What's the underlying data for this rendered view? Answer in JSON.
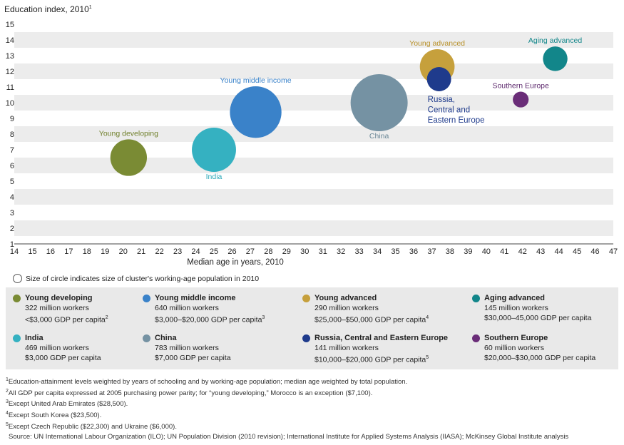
{
  "chart_data": {
    "type": "scatter",
    "ylabel": "Education index, 2010",
    "ylabel_sup": "1",
    "xlabel": "Median age in years, 2010",
    "xlim": [
      14,
      47
    ],
    "ylim": [
      1,
      15
    ],
    "x_ticks": [
      "14",
      "15",
      "16",
      "17",
      "18",
      "19",
      "20",
      "21",
      "22",
      "23",
      "24",
      "25",
      "26",
      "27",
      "28",
      "29",
      "30",
      "31",
      "32",
      "33",
      "34",
      "35",
      "36",
      "37",
      "38",
      "39",
      "40",
      "41",
      "42",
      "43",
      "44",
      "45",
      "46",
      "47"
    ],
    "y_ticks": [
      "1",
      "2",
      "3",
      "4",
      "5",
      "6",
      "7",
      "8",
      "9",
      "10",
      "11",
      "12",
      "13",
      "14",
      "15"
    ],
    "grid": "horizontal bands",
    "series": [
      {
        "name": "Young developing",
        "x": 20.3,
        "y": 6.5,
        "population_million": 322,
        "color": "#7a8b34",
        "label_lines": [
          "Young developing"
        ],
        "label_pos": "above",
        "label_color": "#6f7f2a"
      },
      {
        "name": "India",
        "x": 25.0,
        "y": 7.0,
        "population_million": 469,
        "color": "#35b1c1",
        "label_lines": [
          "India"
        ],
        "label_pos": "below",
        "label_color": "#2aa8b8"
      },
      {
        "name": "Young middle income",
        "x": 27.3,
        "y": 9.4,
        "population_million": 640,
        "color": "#3a82c9",
        "label_lines": [
          "Young middle income"
        ],
        "label_pos": "above",
        "label_color": "#3a82c9"
      },
      {
        "name": "China",
        "x": 34.1,
        "y": 10.0,
        "population_million": 783,
        "color": "#7592a3",
        "label_lines": [
          "China"
        ],
        "label_pos": "below",
        "label_color": "#6a8797"
      },
      {
        "name": "Young advanced",
        "x": 37.3,
        "y": 12.3,
        "population_million": 290,
        "color": "#c6a03c",
        "label_lines": [
          "Young advanced"
        ],
        "label_pos": "above",
        "label_color": "#b8912a"
      },
      {
        "name": "Russia, Central and Eastern Europe",
        "x": 37.4,
        "y": 11.5,
        "population_million": 141,
        "color": "#1f3b8c",
        "label_lines": [
          "Russia,",
          "Central and",
          "Eastern Europe"
        ],
        "label_pos": "below-right",
        "label_color": "#1f3b8c"
      },
      {
        "name": "Southern Europe",
        "x": 41.9,
        "y": 10.2,
        "population_million": 60,
        "color": "#6a2d78",
        "label_lines": [
          "Southern Europe"
        ],
        "label_pos": "above",
        "label_color": "#5e2a6e"
      },
      {
        "name": "Aging advanced",
        "x": 43.8,
        "y": 12.8,
        "population_million": 145,
        "color": "#12868a",
        "label_lines": [
          "Aging advanced"
        ],
        "label_pos": "above",
        "label_color": "#12868a"
      }
    ]
  },
  "size_note": "Size of circle indicates size of cluster's working-age population in 2010",
  "legend": [
    {
      "name": "Young developing",
      "color": "#7a8b34",
      "workers": "322 million workers",
      "gdp": "<$3,000 GDP per capita",
      "sup": "2"
    },
    {
      "name": "Young middle income",
      "color": "#3a82c9",
      "workers": "640 million workers",
      "gdp": "$3,000–$20,000 GDP per capita",
      "sup": "3"
    },
    {
      "name": "Young advanced",
      "color": "#c6a03c",
      "workers": "290 million workers",
      "gdp": "$25,000–$50,000 GDP per capita",
      "sup": "4"
    },
    {
      "name": "Aging advanced",
      "color": "#12868a",
      "workers": "145 million workers",
      "gdp": "$30,000–45,000 GDP per capita",
      "sup": ""
    },
    {
      "name": "India",
      "color": "#35b1c1",
      "workers": "469 million workers",
      "gdp": "$3,000 GDP per capita",
      "sup": ""
    },
    {
      "name": "China",
      "color": "#7592a3",
      "workers": "783 million workers",
      "gdp": "$7,000 GDP per capita",
      "sup": ""
    },
    {
      "name": "Russia, Central and Eastern Europe",
      "color": "#1f3b8c",
      "workers": "141 million workers",
      "gdp": "$10,000–$20,000 GDP per capita",
      "sup": "5"
    },
    {
      "name": "Southern Europe",
      "color": "#6a2d78",
      "workers": "60 million workers",
      "gdp": "$20,000–$30,000 GDP per capita",
      "sup": ""
    }
  ],
  "footnotes": [
    {
      "sup": "1",
      "text": "Education-attainment levels weighted by years of schooling and by working-age population; median age weighted by total population."
    },
    {
      "sup": "2",
      "text": "All GDP per capita expressed at 2005 purchasing power parity; for “young developing,” Morocco is an exception ($7,100)."
    },
    {
      "sup": "3",
      "text": "Except United Arab Emirates ($28,500)."
    },
    {
      "sup": "4",
      "text": "Except South Korea ($23,500)."
    },
    {
      "sup": "5",
      "text": "Except Czech Republic ($22,300) and Ukraine ($6,000)."
    }
  ],
  "source": "Source: UN International Labour Organization (ILO); UN Population Division (2010 revision); International Institute for Applied Systems Analysis (IIASA); McKinsey Global Institute analysis"
}
